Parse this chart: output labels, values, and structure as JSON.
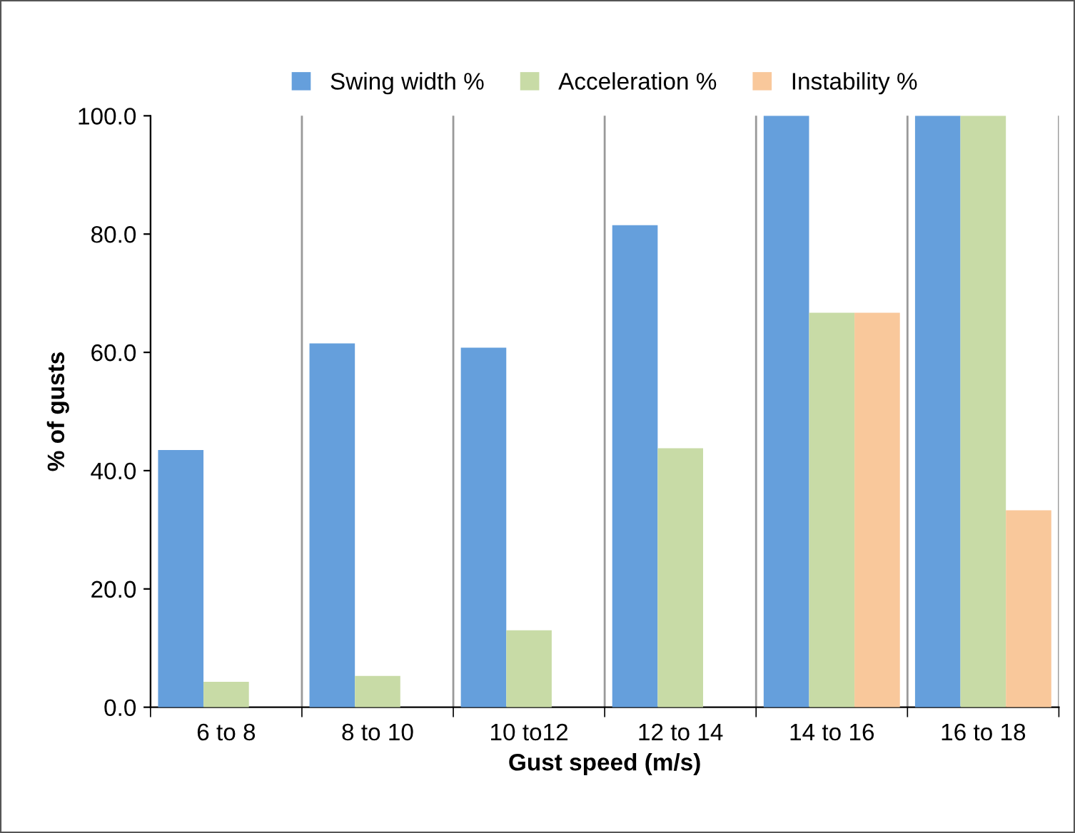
{
  "chart_data": {
    "type": "bar",
    "xlabel": "Gust speed (m/s)",
    "ylabel": "% of gusts",
    "categories": [
      "6 to 8",
      "8 to 10",
      "10 to12",
      "12 to 14",
      "14 to 16",
      "16 to 18"
    ],
    "series": [
      {
        "name": "Swing width %",
        "color": "#659fdc",
        "values": [
          43.5,
          61.5,
          60.8,
          81.5,
          100.0,
          100.0
        ]
      },
      {
        "name": "Acceleration %",
        "color": "#c8dba6",
        "values": [
          4.3,
          5.3,
          13.0,
          43.8,
          66.7,
          100.0
        ]
      },
      {
        "name": "Instability %",
        "color": "#f9c89b",
        "values": [
          0,
          0,
          0,
          0,
          66.7,
          33.3
        ]
      }
    ],
    "ylim": [
      0,
      100
    ],
    "yticks": [
      {
        "value": 0,
        "label": "0.0"
      },
      {
        "value": 20,
        "label": "20.0"
      },
      {
        "value": 40,
        "label": "40.0"
      },
      {
        "value": 60,
        "label": "60.0"
      },
      {
        "value": 80,
        "label": "80.0"
      },
      {
        "value": 100,
        "label": "100.0"
      }
    ],
    "grid": "x",
    "legend": "top"
  }
}
